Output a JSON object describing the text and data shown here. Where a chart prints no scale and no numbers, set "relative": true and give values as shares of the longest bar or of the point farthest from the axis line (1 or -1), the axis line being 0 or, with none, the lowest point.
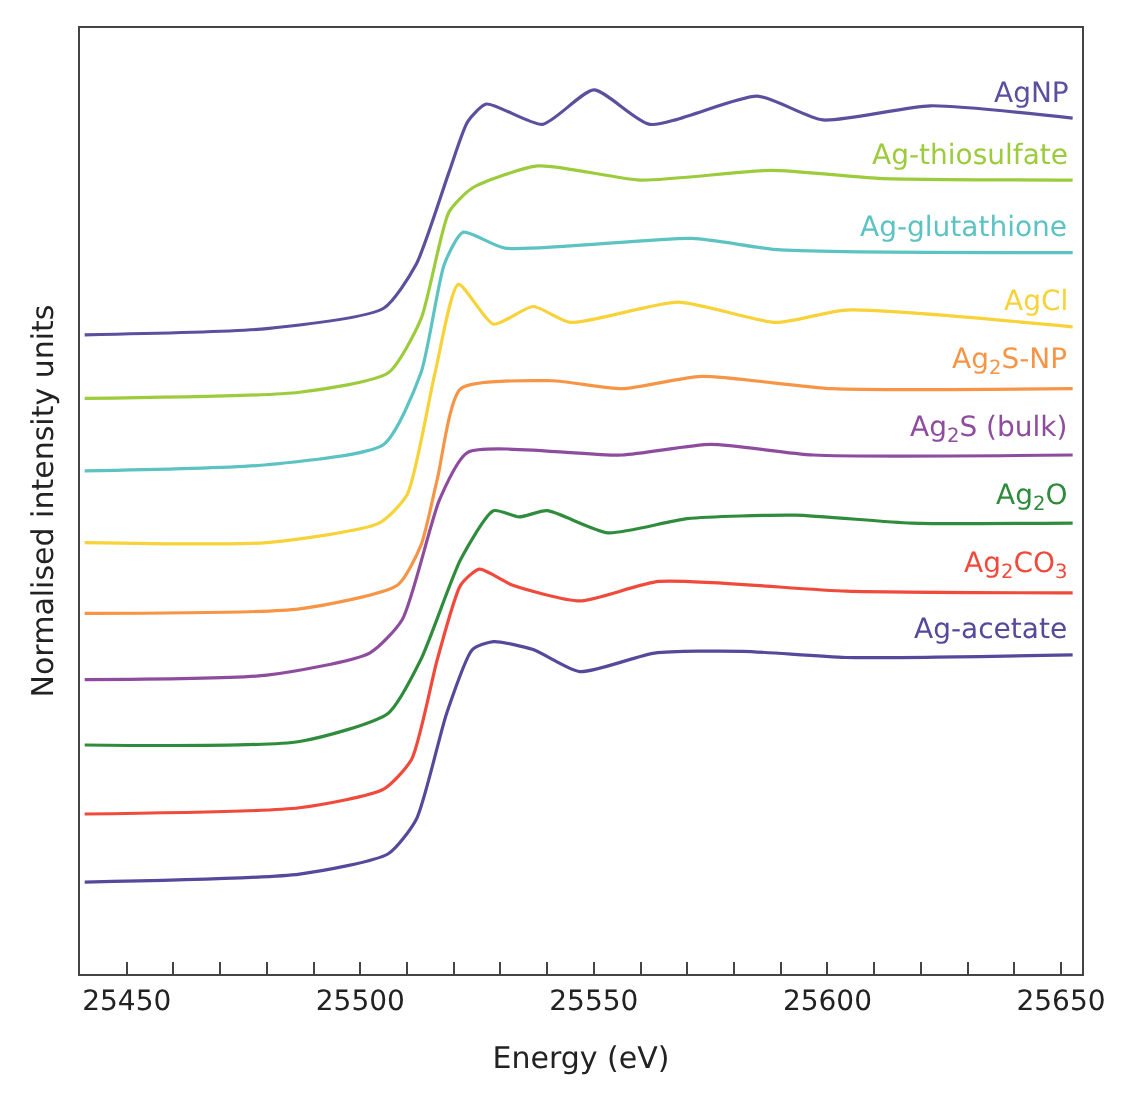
{
  "chart_data": {
    "type": "line",
    "relative": true,
    "xlabel": "Energy (eV)",
    "ylabel": "Normalised intensity units",
    "xlim": [
      25440,
      25654.5
    ],
    "xticks": [
      25450,
      {
        "value": 25460,
        "label": null
      },
      {
        "value": 25470,
        "label": null
      },
      {
        "value": 25480,
        "label": null
      },
      {
        "value": 25490,
        "label": null
      },
      25500,
      {
        "value": 25510,
        "label": null
      },
      {
        "value": 25520,
        "label": null
      },
      {
        "value": 25530,
        "label": null
      },
      {
        "value": 25540,
        "label": null
      },
      25550,
      {
        "value": 25560,
        "label": null
      },
      {
        "value": 25570,
        "label": null
      },
      {
        "value": 25580,
        "label": null
      },
      {
        "value": 25590,
        "label": null
      },
      25600,
      {
        "value": 25610,
        "label": null
      },
      {
        "value": 25620,
        "label": null
      },
      {
        "value": 25630,
        "label": null
      },
      {
        "value": 25640,
        "label": null
      },
      25650
    ],
    "legend": false,
    "marker": "none",
    "line_style": "solid",
    "series": [
      {
        "name": "AgNP",
        "color": "#5b4f9e",
        "x": [
          25441,
          25480,
          25505,
          25512,
          25519,
          25523,
          25527,
          25539,
          25550,
          25562,
          25585,
          25599,
          25622,
          25652.5
        ],
        "values": [
          0.723,
          0.73,
          0.753,
          0.803,
          0.907,
          0.964,
          0.984,
          0.961,
          1.0,
          0.961,
          0.993,
          0.966,
          0.982,
          0.968
        ]
      },
      {
        "name": "Ag-thiosulfate",
        "color": "#9ccb3b",
        "x": [
          25441,
          25487,
          25506,
          25513,
          25519,
          25524,
          25538,
          25560,
          25588,
          25611,
          25652.5
        ],
        "values": [
          0.651,
          0.658,
          0.68,
          0.741,
          0.862,
          0.889,
          0.914,
          0.898,
          0.909,
          0.9,
          0.898
        ]
      },
      {
        "name": "Ag-glutathione",
        "color": "#5cc2c2",
        "x": [
          25441,
          25480,
          25505,
          25513,
          25518,
          25522,
          25531,
          25571,
          25590,
          25652.5
        ],
        "values": [
          0.569,
          0.576,
          0.599,
          0.68,
          0.803,
          0.839,
          0.821,
          0.832,
          0.819,
          0.816
        ]
      },
      {
        "name": "AgCl",
        "color": "#f7d238",
        "x": [
          25441,
          25480,
          25504,
          25510,
          25516,
          25521,
          25528.5,
          25537,
          25545,
          25568,
          25589,
          25604,
          25652.5
        ],
        "values": [
          0.488,
          0.488,
          0.51,
          0.542,
          0.68,
          0.78,
          0.735,
          0.755,
          0.737,
          0.76,
          0.737,
          0.751,
          0.732
        ]
      },
      {
        "name": "Ag$_{2}$S-NP",
        "color": "#f79546",
        "x": [
          25441,
          25487,
          25508,
          25513,
          25516.5,
          25521.5,
          25541,
          25556,
          25573,
          25601,
          25652.5
        ],
        "values": [
          0.408,
          0.413,
          0.44,
          0.485,
          0.56,
          0.662,
          0.671,
          0.662,
          0.676,
          0.662,
          0.662
        ]
      },
      {
        "name": "Ag$_{2}$S (bulk)",
        "color": "#8e4c9e",
        "x": [
          25441,
          25480,
          25502,
          25509,
          25517,
          25523,
          25556,
          25575,
          25597,
          25652.5
        ],
        "values": [
          0.333,
          0.338,
          0.363,
          0.401,
          0.537,
          0.59,
          0.587,
          0.599,
          0.587,
          0.587
        ]
      },
      {
        "name": "Ag$_{2}$O",
        "color": "#2f8c3c",
        "x": [
          25441,
          25487,
          25506,
          25513,
          25521.5,
          25528.5,
          25534,
          25540,
          25553,
          25570,
          25593,
          25618,
          25652.5
        ],
        "values": [
          0.259,
          0.263,
          0.295,
          0.356,
          0.469,
          0.524,
          0.517,
          0.524,
          0.499,
          0.515,
          0.519,
          0.51,
          0.51
        ]
      },
      {
        "name": "Ag$_{2}$CO$_{3}$",
        "color": "#ef4a3c",
        "x": [
          25441,
          25487,
          25505,
          25511,
          25516.5,
          25521.5,
          25525.5,
          25532.5,
          25547,
          25564,
          25604,
          25652.5
        ],
        "values": [
          0.181,
          0.188,
          0.209,
          0.243,
          0.356,
          0.44,
          0.458,
          0.44,
          0.422,
          0.444,
          0.433,
          0.431
        ]
      },
      {
        "name": "Ag-acetate",
        "color": "#56489a",
        "x": [
          25441,
          25487,
          25506,
          25512,
          25518.5,
          25524,
          25528.5,
          25537,
          25547,
          25563,
          25582,
          25604,
          25652.5
        ],
        "values": [
          0.104,
          0.113,
          0.136,
          0.175,
          0.295,
          0.367,
          0.376,
          0.367,
          0.342,
          0.363,
          0.365,
          0.358,
          0.361
        ]
      }
    ]
  }
}
